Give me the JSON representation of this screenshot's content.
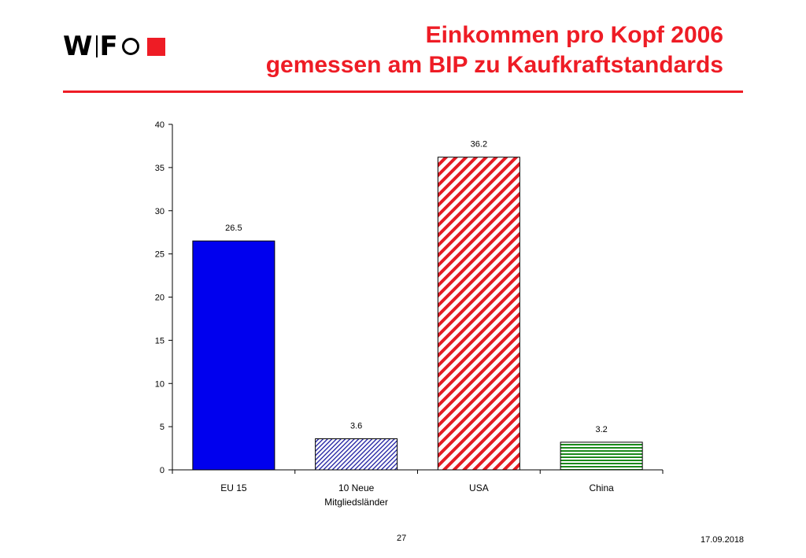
{
  "header": {
    "logo_text_w": "W",
    "logo_text_f": "F",
    "title_line1": "Einkommen pro Kopf 2006",
    "title_line2": "gemessen am BIP zu Kaufkraftstandards"
  },
  "footer": {
    "page": "27",
    "date": "17.09.2018"
  },
  "colors": {
    "accent": "#ee1c25",
    "eu15": "#0000ee",
    "new10": "#1a1aa0",
    "usa": "#e31b23",
    "china": "#1a8a1a"
  },
  "chart_data": {
    "type": "bar",
    "title": "",
    "xlabel": "",
    "ylabel": "",
    "ylim": [
      0,
      40
    ],
    "yticks": [
      0,
      5,
      10,
      15,
      20,
      25,
      30,
      35,
      40
    ],
    "grid": false,
    "categories": [
      {
        "line1": "EU 15",
        "line2": ""
      },
      {
        "line1": "10 Neue",
        "line2": "Mitgliedsländer"
      },
      {
        "line1": "USA",
        "line2": ""
      },
      {
        "line1": "China",
        "line2": ""
      }
    ],
    "values": [
      26.5,
      3.6,
      36.2,
      3.2
    ],
    "data_labels": [
      "26.5",
      "3.6",
      "36.2",
      "3.2"
    ],
    "fills": [
      "solid",
      "crosshatch",
      "diagonal",
      "horizontal"
    ]
  }
}
